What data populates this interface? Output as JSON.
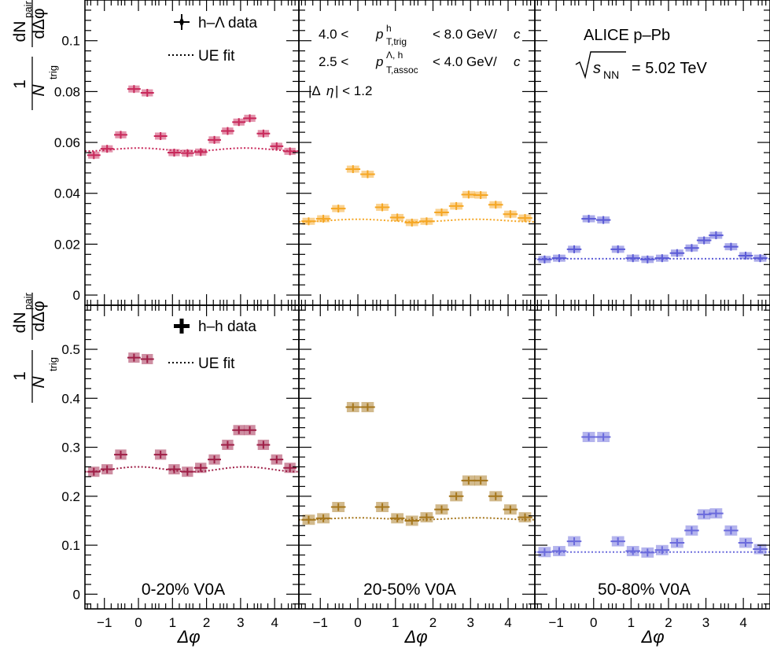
{
  "figure": {
    "legend_top": {
      "data_label": "h–Λ data",
      "fit_label": "UE fit"
    },
    "legend_bottom": {
      "data_label": "h–h data",
      "fit_label": "UE fit"
    },
    "ylabel_num": "dN",
    "ylabel_num_sub": "pair",
    "ylabel_den": "dΔφ",
    "ylabel_frac_num": "1",
    "ylabel_frac_den": "N",
    "ylabel_frac_den_sub": "trig",
    "xlabel": "Δφ",
    "kin": {
      "line1_lo": "4.0 <",
      "line1_var": "p",
      "line1_sup": "h",
      "line1_sub": "T,trig",
      "line1_hi": "< 8.0 GeV/",
      "line1_unit_italic": "c",
      "line2_lo": "2.5 <",
      "line2_var": "p",
      "line2_sup": "Λ, h",
      "line2_sub": "T,assoc",
      "line2_hi": "< 4.0 GeV/",
      "line2_unit_italic": "c",
      "line3_pre": "|Δ",
      "line3_var": "η",
      "line3_post": "| < 1.2"
    },
    "experiment": {
      "name": "ALICE p–Pb",
      "energy_var": "s",
      "energy_sub": "NN",
      "energy_val": "= 5.02 TeV"
    },
    "centrality": [
      "0-20% V0A",
      "20-50% V0A",
      "50-80% V0A"
    ]
  },
  "chart_data": [
    {
      "type": "scatter",
      "row": "top",
      "panel": 0,
      "centrality": "0-20% V0A",
      "series": [
        {
          "name": "h–Λ data",
          "color": "#c8285a",
          "x": [
            -1.31,
            -0.92,
            -0.52,
            -0.13,
            0.26,
            0.65,
            1.05,
            1.44,
            1.83,
            2.23,
            2.62,
            2.95,
            3.27,
            3.67,
            4.06,
            4.45
          ],
          "y": [
            0.055,
            0.0575,
            0.063,
            0.081,
            0.0795,
            0.0625,
            0.056,
            0.0558,
            0.0562,
            0.061,
            0.0645,
            0.068,
            0.0695,
            0.0635,
            0.0585,
            0.0565
          ]
        },
        {
          "name": "UE fit",
          "color": "#c8285a",
          "baseline": 0.0572,
          "amplitude": 0.0006
        }
      ],
      "ylim": [
        -0.004,
        0.116
      ],
      "xlim": [
        -1.571,
        4.712
      ],
      "yticks": [
        0,
        0.02,
        0.04,
        0.06,
        0.08,
        0.1
      ],
      "yticklabels": [
        "0",
        "0.02",
        "0.04",
        "0.06",
        "0.08",
        "0.1"
      ]
    },
    {
      "type": "scatter",
      "row": "top",
      "panel": 1,
      "centrality": "20-50% V0A",
      "series": [
        {
          "name": "h–Λ data",
          "color": "#f5a623",
          "x": [
            -1.31,
            -0.92,
            -0.52,
            -0.13,
            0.26,
            0.65,
            1.05,
            1.44,
            1.83,
            2.23,
            2.62,
            2.95,
            3.27,
            3.67,
            4.06,
            4.45
          ],
          "y": [
            0.029,
            0.03,
            0.034,
            0.0495,
            0.0475,
            0.0345,
            0.0305,
            0.0285,
            0.029,
            0.0325,
            0.035,
            0.0395,
            0.0393,
            0.0355,
            0.0318,
            0.0303
          ]
        },
        {
          "name": "UE fit",
          "color": "#f5a623",
          "baseline": 0.0293,
          "amplitude": 0.0005
        }
      ],
      "ylim": [
        -0.004,
        0.116
      ],
      "xlim": [
        -1.571,
        4.712
      ]
    },
    {
      "type": "scatter",
      "row": "top",
      "panel": 2,
      "centrality": "50-80% V0A",
      "series": [
        {
          "name": "h–Λ data",
          "color": "#5a5ad6",
          "x": [
            -1.31,
            -0.92,
            -0.52,
            -0.13,
            0.26,
            0.65,
            1.05,
            1.44,
            1.83,
            2.23,
            2.62,
            2.95,
            3.27,
            3.67,
            4.06,
            4.45
          ],
          "y": [
            0.014,
            0.0145,
            0.018,
            0.03,
            0.0295,
            0.018,
            0.0145,
            0.014,
            0.0145,
            0.0165,
            0.0185,
            0.0215,
            0.0235,
            0.019,
            0.0155,
            0.0145
          ]
        },
        {
          "name": "UE fit",
          "color": "#5a5ad6",
          "baseline": 0.0143,
          "amplitude": 0.0
        }
      ],
      "ylim": [
        -0.004,
        0.116
      ],
      "xlim": [
        -1.571,
        4.712
      ]
    },
    {
      "type": "scatter",
      "row": "bottom",
      "panel": 0,
      "centrality": "0-20% V0A",
      "series": [
        {
          "name": "h–h data",
          "color": "#9e1e46",
          "x": [
            -1.31,
            -0.92,
            -0.52,
            -0.13,
            0.26,
            0.65,
            1.05,
            1.44,
            1.83,
            2.23,
            2.62,
            2.95,
            3.27,
            3.67,
            4.06,
            4.45
          ],
          "y": [
            0.25,
            0.255,
            0.285,
            0.483,
            0.48,
            0.285,
            0.255,
            0.25,
            0.258,
            0.275,
            0.305,
            0.335,
            0.335,
            0.305,
            0.275,
            0.258
          ]
        },
        {
          "name": "UE fit",
          "color": "#9e1e46",
          "baseline": 0.255,
          "amplitude": 0.005
        }
      ],
      "ylim": [
        -0.03,
        0.59
      ],
      "xlim": [
        -1.571,
        4.712
      ],
      "yticks": [
        0,
        0.1,
        0.2,
        0.3,
        0.4,
        0.5
      ],
      "yticklabels": [
        "0",
        "0.1",
        "0.2",
        "0.3",
        "0.4",
        "0.5"
      ],
      "xticks": [
        -1,
        0,
        1,
        2,
        3,
        4
      ],
      "xticklabels": [
        "−1",
        "0",
        "1",
        "2",
        "3",
        "4"
      ]
    },
    {
      "type": "scatter",
      "row": "bottom",
      "panel": 1,
      "centrality": "20-50% V0A",
      "series": [
        {
          "name": "h–h data",
          "color": "#a5761c",
          "x": [
            -1.31,
            -0.92,
            -0.52,
            -0.13,
            0.26,
            0.65,
            1.05,
            1.44,
            1.83,
            2.23,
            2.62,
            2.95,
            3.27,
            3.67,
            4.06,
            4.45
          ],
          "y": [
            0.152,
            0.155,
            0.178,
            0.382,
            0.382,
            0.178,
            0.155,
            0.15,
            0.157,
            0.173,
            0.2,
            0.232,
            0.232,
            0.2,
            0.173,
            0.157
          ]
        },
        {
          "name": "UE fit",
          "color": "#a5761c",
          "baseline": 0.154,
          "amplitude": 0.002
        }
      ],
      "ylim": [
        -0.03,
        0.59
      ],
      "xlim": [
        -1.571,
        4.712
      ],
      "xticks": [
        -1,
        0,
        1,
        2,
        3,
        4
      ],
      "xticklabels": [
        "−1",
        "0",
        "1",
        "2",
        "3",
        "4"
      ]
    },
    {
      "type": "scatter",
      "row": "bottom",
      "panel": 2,
      "centrality": "50-80% V0A",
      "series": [
        {
          "name": "h–h data",
          "color": "#6a6adc",
          "x": [
            -1.31,
            -0.92,
            -0.52,
            -0.13,
            0.26,
            0.65,
            1.05,
            1.44,
            1.83,
            2.23,
            2.62,
            2.95,
            3.27,
            3.67,
            4.06,
            4.45
          ],
          "y": [
            0.086,
            0.088,
            0.108,
            0.321,
            0.321,
            0.108,
            0.088,
            0.085,
            0.09,
            0.105,
            0.13,
            0.163,
            0.165,
            0.13,
            0.105,
            0.092
          ]
        },
        {
          "name": "UE fit",
          "color": "#6a6adc",
          "baseline": 0.086,
          "amplitude": 0.0
        }
      ],
      "ylim": [
        -0.03,
        0.59
      ],
      "xlim": [
        -1.571,
        4.712
      ],
      "xticks": [
        -1,
        0,
        1,
        2,
        3,
        4
      ],
      "xticklabels": [
        "−1",
        "0",
        "1",
        "2",
        "3",
        "4"
      ]
    }
  ]
}
